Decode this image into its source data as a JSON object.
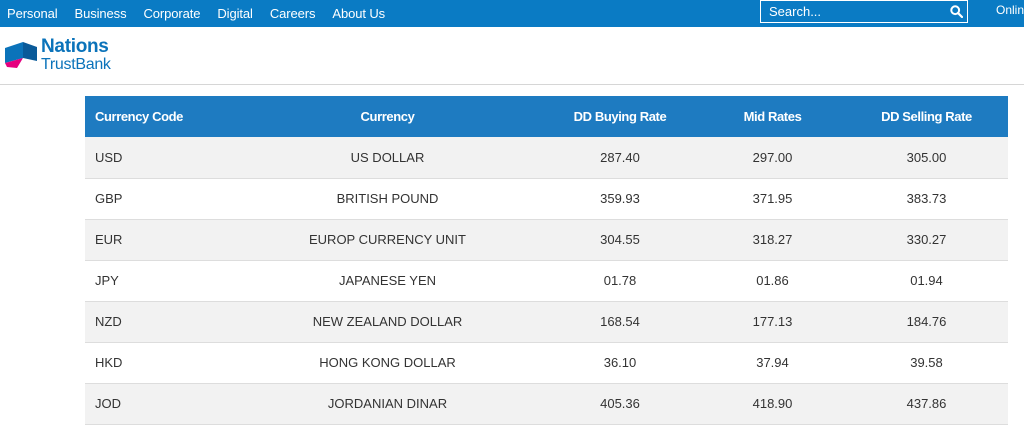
{
  "nav": {
    "items": [
      "Personal",
      "Business",
      "Corporate",
      "Digital",
      "Careers",
      "About Us"
    ],
    "search_placeholder": "Search...",
    "online_label": "Online"
  },
  "brand": {
    "line1": "Nations",
    "line2": "TrustBank",
    "primary_color": "#0b73ba",
    "accent_color": "#e5007e"
  },
  "table": {
    "headers": [
      "Currency Code",
      "Currency",
      "DD Buying Rate",
      "Mid Rates",
      "DD Selling Rate"
    ],
    "rows": [
      [
        "USD",
        "US DOLLAR",
        "287.40",
        "297.00",
        "305.00"
      ],
      [
        "GBP",
        "BRITISH POUND",
        "359.93",
        "371.95",
        "383.73"
      ],
      [
        "EUR",
        "EUROP CURRENCY UNIT",
        "304.55",
        "318.27",
        "330.27"
      ],
      [
        "JPY",
        "JAPANESE YEN",
        "01.78",
        "01.86",
        "01.94"
      ],
      [
        "NZD",
        "NEW ZEALAND DOLLAR",
        "168.54",
        "177.13",
        "184.76"
      ],
      [
        "HKD",
        "HONG KONG DOLLAR",
        "36.10",
        "37.94",
        "39.58"
      ],
      [
        "JOD",
        "JORDANIAN DINAR",
        "405.36",
        "418.90",
        "437.86"
      ]
    ]
  },
  "colors": {
    "nav_bg": "#0a7bc4",
    "header_bg": "#1e7bc1",
    "row_alt": "#f2f2f2"
  }
}
